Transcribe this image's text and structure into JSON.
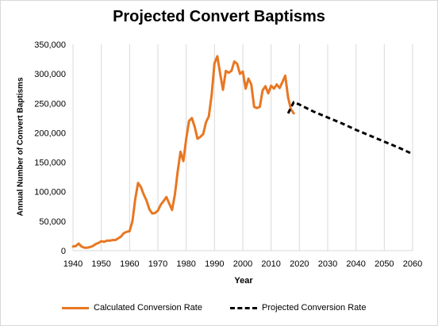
{
  "colors": {
    "calculated": "#e87722",
    "projected": "#000000",
    "grid": "#d9d9d9"
  },
  "chart_data": {
    "type": "line",
    "title": "Projected Convert Baptisms",
    "xlabel": "Year",
    "ylabel": "Annual Number of Convert Baptisms",
    "xlim": [
      1940,
      2060
    ],
    "ylim": [
      0,
      350000
    ],
    "x_ticks": [
      1940,
      1950,
      1960,
      1970,
      1980,
      1990,
      2000,
      2010,
      2020,
      2030,
      2040,
      2050,
      2060
    ],
    "y_ticks": [
      0,
      50000,
      100000,
      150000,
      200000,
      250000,
      300000,
      350000
    ],
    "y_tick_labels": [
      "0",
      "50,000",
      "100,000",
      "150,000",
      "200,000",
      "250,000",
      "300,000",
      "350,000"
    ],
    "grid": "vertical",
    "legend_position": "bottom",
    "series": [
      {
        "name": "Calculated Conversion Rate",
        "style": "solid",
        "x": [
          1940,
          1941,
          1942,
          1943,
          1944,
          1945,
          1946,
          1947,
          1948,
          1949,
          1950,
          1951,
          1952,
          1953,
          1954,
          1955,
          1956,
          1957,
          1958,
          1959,
          1960,
          1961,
          1962,
          1963,
          1964,
          1965,
          1966,
          1967,
          1968,
          1969,
          1970,
          1971,
          1972,
          1973,
          1974,
          1975,
          1976,
          1977,
          1978,
          1979,
          1980,
          1981,
          1982,
          1983,
          1984,
          1985,
          1986,
          1987,
          1988,
          1989,
          1990,
          1991,
          1992,
          1993,
          1994,
          1995,
          1996,
          1997,
          1998,
          1999,
          2000,
          2001,
          2002,
          2003,
          2004,
          2005,
          2006,
          2007,
          2008,
          2009,
          2010,
          2011,
          2012,
          2013,
          2014,
          2015,
          2016,
          2017,
          2018
        ],
        "values": [
          7000,
          8000,
          12000,
          7000,
          5000,
          5000,
          6000,
          8000,
          11000,
          13000,
          16000,
          15000,
          17000,
          17000,
          18000,
          18000,
          21000,
          24000,
          30000,
          32000,
          33000,
          50000,
          88000,
          115000,
          108000,
          95000,
          85000,
          70000,
          63000,
          64000,
          68000,
          78000,
          84000,
          91000,
          80000,
          69000,
          95000,
          135000,
          168000,
          152000,
          190000,
          220000,
          225000,
          210000,
          190000,
          193000,
          198000,
          218000,
          228000,
          265000,
          318000,
          330000,
          300000,
          273000,
          305000,
          302000,
          305000,
          321000,
          317000,
          300000,
          304000,
          275000,
          292000,
          282000,
          244000,
          242000,
          244000,
          272000,
          279000,
          267000,
          280000,
          275000,
          282000,
          276000,
          286000,
          297000,
          260000,
          240000,
          233000
        ]
      },
      {
        "name": "Projected Conversion Rate",
        "style": "dashed",
        "x": [
          2016,
          2018,
          2020,
          2025,
          2030,
          2035,
          2040,
          2045,
          2050,
          2055,
          2060
        ],
        "values": [
          233000,
          252000,
          248000,
          236000,
          226000,
          216000,
          205000,
          195000,
          185000,
          175000,
          164000
        ]
      }
    ]
  }
}
